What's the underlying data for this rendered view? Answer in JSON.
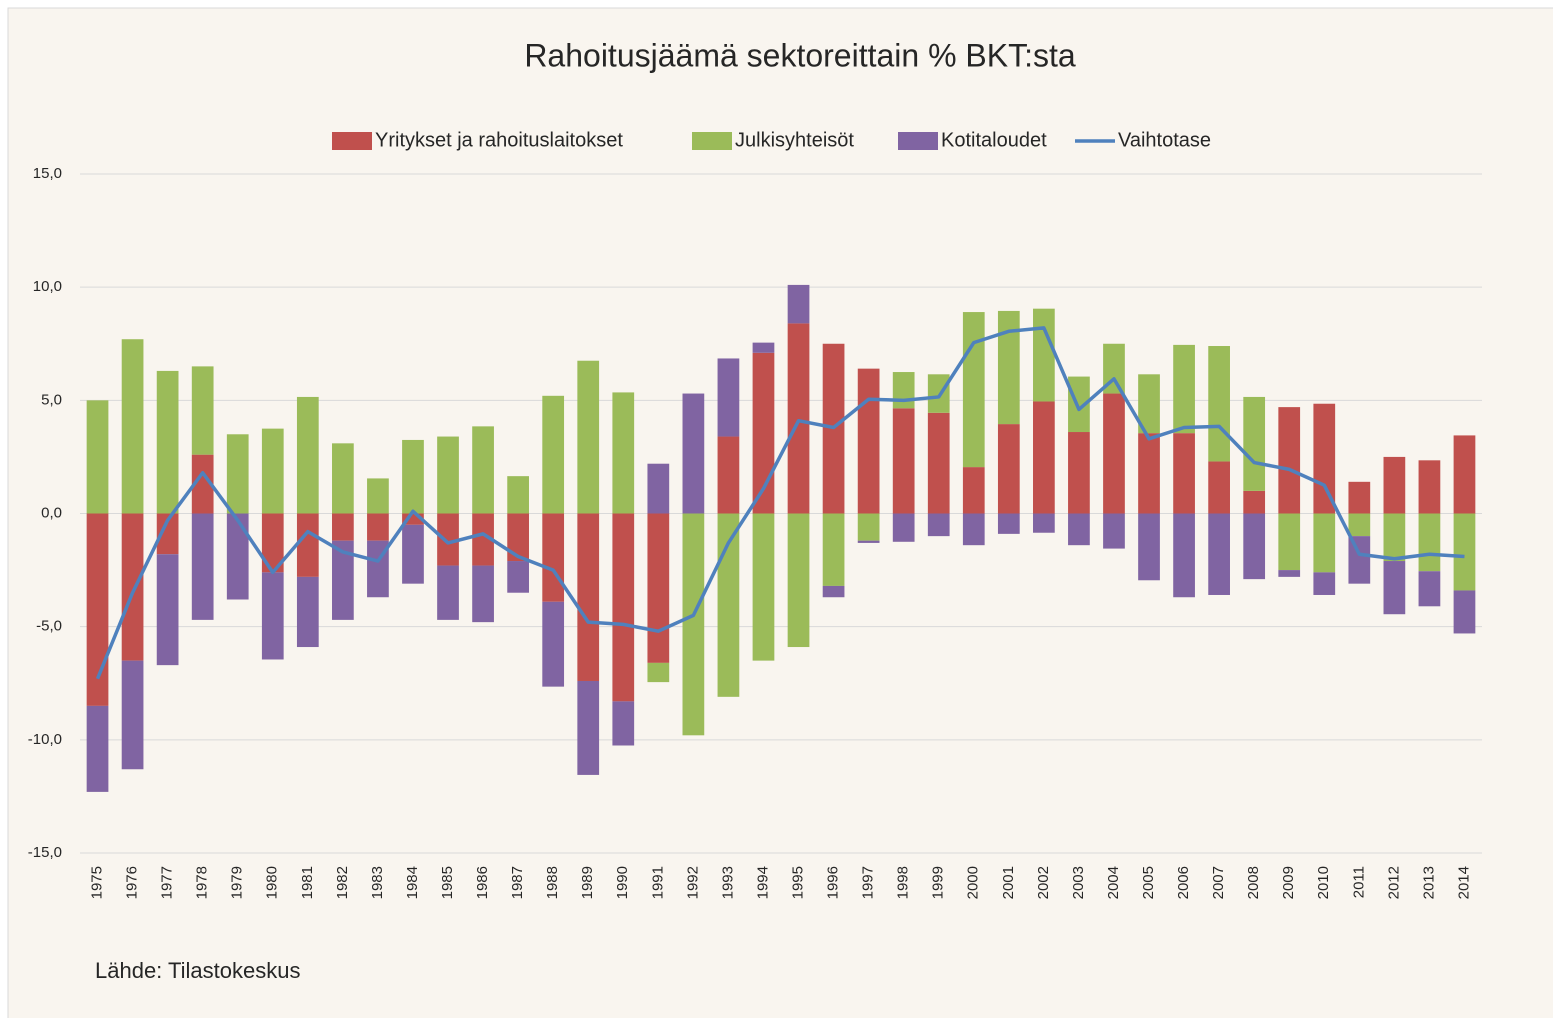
{
  "chart_data": {
    "type": "bar",
    "title": "Rahoitusjäämä sektoreittain % BKT:sta",
    "source": "Lähde: Tilastokeskus",
    "stacked": true,
    "grid": true,
    "legend": "top",
    "categories": [
      "1975",
      "1976",
      "1977",
      "1978",
      "1979",
      "1980",
      "1981",
      "1982",
      "1983",
      "1984",
      "1985",
      "1986",
      "1987",
      "1988",
      "1989",
      "1990",
      "1991",
      "1992",
      "1993",
      "1994",
      "1995",
      "1996",
      "1997",
      "1998",
      "1999",
      "2000",
      "2001",
      "2002",
      "2003",
      "2004",
      "2005",
      "2006",
      "2007",
      "2008",
      "2009",
      "2010",
      "2011",
      "2012",
      "2013",
      "2014"
    ],
    "ylim": [
      -15,
      15
    ],
    "yticks": [
      {
        "value": -15,
        "label": "-15,0"
      },
      {
        "value": -10,
        "label": "-10,0"
      },
      {
        "value": -5,
        "label": "-5,0"
      },
      {
        "value": 0,
        "label": "0,0"
      },
      {
        "value": 5,
        "label": "5,0"
      },
      {
        "value": 10,
        "label": "10,0"
      },
      {
        "value": 15,
        "label": "15,0"
      }
    ],
    "series": [
      {
        "name": "Yritykset ja rahoituslaitokset",
        "type": "bar",
        "color": "#c0504d",
        "values": [
          -8.5,
          -6.5,
          -1.8,
          2.6,
          0,
          -2.6,
          -2.8,
          -1.2,
          -1.2,
          -0.5,
          -2.3,
          -2.3,
          -2.1,
          -3.9,
          -7.4,
          -8.3,
          -6.6,
          0,
          3.4,
          7.1,
          8.4,
          7.5,
          6.4,
          4.65,
          4.45,
          2.05,
          3.95,
          4.95,
          3.6,
          5.3,
          3.55,
          3.55,
          2.3,
          1.0,
          4.7,
          4.85,
          1.4,
          2.5,
          2.35,
          3.45
        ]
      },
      {
        "name": "Julkisyhteisöt",
        "type": "bar",
        "color": "#9bbb59",
        "values": [
          5.0,
          7.7,
          6.3,
          3.9,
          3.5,
          3.75,
          5.15,
          3.1,
          1.55,
          3.25,
          3.4,
          3.85,
          1.65,
          5.2,
          6.75,
          5.35,
          -0.85,
          -9.8,
          -8.1,
          -6.5,
          -5.9,
          -3.2,
          -1.2,
          1.6,
          1.7,
          6.85,
          5.0,
          4.1,
          2.45,
          2.2,
          2.6,
          3.9,
          5.1,
          4.15,
          -2.5,
          -2.6,
          -1.0,
          -2.1,
          -2.55,
          -3.4
        ]
      },
      {
        "name": "Kotitaloudet",
        "type": "bar",
        "color": "#8064a2",
        "values": [
          -3.8,
          -4.8,
          -4.9,
          -4.7,
          -3.8,
          -3.85,
          -3.1,
          -3.5,
          -2.5,
          -2.6,
          -2.4,
          -2.5,
          -1.4,
          -3.75,
          -4.15,
          -1.95,
          2.2,
          5.3,
          3.45,
          0.45,
          1.7,
          -0.5,
          -0.1,
          -1.25,
          -1.0,
          -1.4,
          -0.9,
          -0.85,
          -1.4,
          -1.55,
          -2.95,
          -3.7,
          -3.6,
          -2.9,
          -0.3,
          -1.0,
          -2.1,
          -2.35,
          -1.55,
          -1.9
        ]
      },
      {
        "name": "Vaihtotase",
        "type": "line",
        "color": "#4f81bd",
        "values": [
          -7.3,
          -3.5,
          -0.3,
          1.8,
          -0.3,
          -2.6,
          -0.8,
          -1.7,
          -2.1,
          0.1,
          -1.3,
          -0.9,
          -1.9,
          -2.5,
          -4.8,
          -4.9,
          -5.2,
          -4.5,
          -1.3,
          1.1,
          4.1,
          3.8,
          5.05,
          5.0,
          5.15,
          7.55,
          8.05,
          8.2,
          4.6,
          5.95,
          3.3,
          3.8,
          3.85,
          2.25,
          1.95,
          1.25,
          -1.8,
          -2.0,
          -1.8,
          -1.9
        ]
      }
    ]
  }
}
